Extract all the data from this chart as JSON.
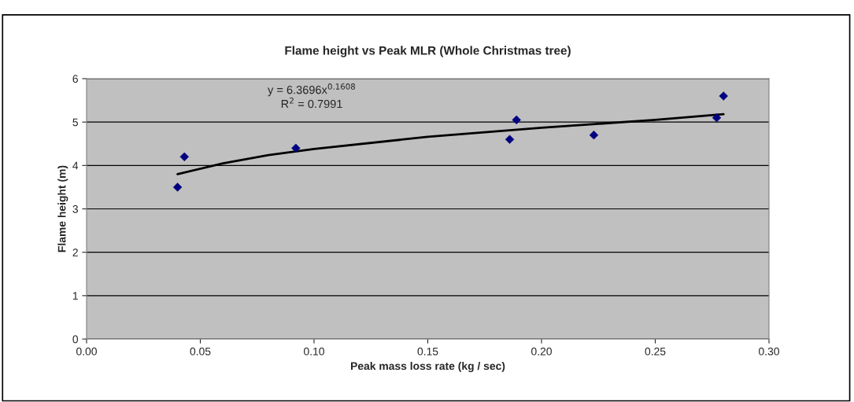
{
  "chart_data": {
    "type": "scatter",
    "title": "Flame height vs Peak MLR (Whole Christmas tree)",
    "xlabel": "Peak mass loss rate (kg / sec)",
    "ylabel": "Flame height (m)",
    "xlim": [
      0,
      0.3
    ],
    "xticks": [
      {
        "value": 0,
        "label": "0.00"
      },
      {
        "value": 0.05,
        "label": "0.05"
      },
      {
        "value": 0.1,
        "label": "0.10"
      },
      {
        "value": 0.15,
        "label": "0.15"
      },
      {
        "value": 0.2,
        "label": "0.20"
      },
      {
        "value": 0.25,
        "label": "0.25"
      },
      {
        "value": 0.3,
        "label": "0.30"
      }
    ],
    "ylim": [
      0,
      6
    ],
    "yticks": [
      0,
      1,
      2,
      3,
      4,
      5,
      6
    ],
    "grid": "y",
    "series": [
      {
        "marker": "diamond",
        "color": "#000080",
        "x": [
          0.04,
          0.043,
          0.092,
          0.186,
          0.189,
          0.223,
          0.277,
          0.28
        ],
        "values": [
          3.5,
          4.2,
          4.4,
          4.6,
          5.05,
          4.7,
          5.1,
          5.6
        ]
      },
      {
        "type": "line",
        "color": "#000000",
        "x": [
          0.04,
          0.06,
          0.08,
          0.1,
          0.15,
          0.2,
          0.25,
          0.28
        ],
        "values": [
          3.8,
          4.05,
          4.24,
          4.38,
          4.66,
          4.87,
          5.05,
          5.18
        ]
      }
    ],
    "annotations": [
      "y = 6.3696x$^{0.1608}$\nR$^{2}$ = 0.7991"
    ]
  }
}
